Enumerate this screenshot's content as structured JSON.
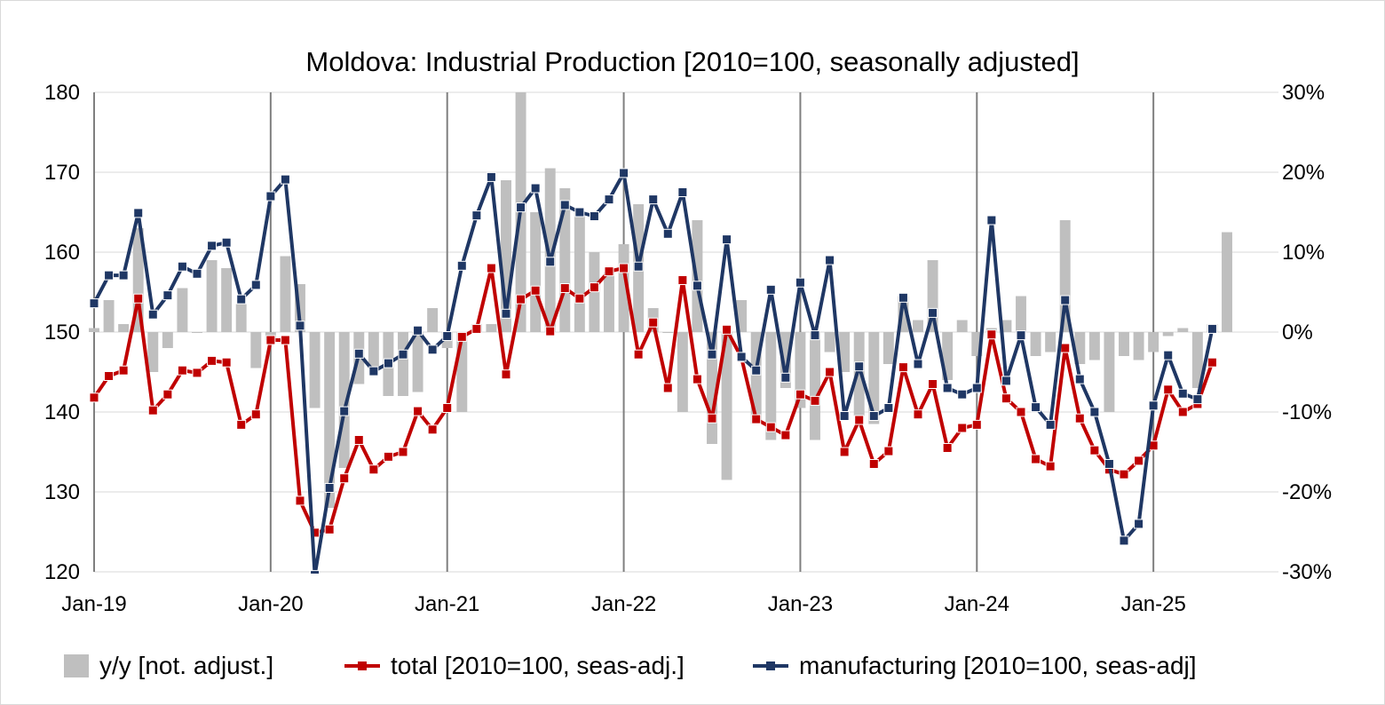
{
  "chart_data": {
    "type": "bar+line",
    "title": "Moldova: Industrial Production [2010=100, seasonally adjusted]",
    "x_start": "2019-01",
    "x_tick_labels": [
      "Jan-19",
      "Jan-20",
      "Jan-21",
      "Jan-22",
      "Jan-23",
      "Jan-24",
      "Jan-25"
    ],
    "y_left": {
      "range": [
        120,
        180
      ],
      "step": 10,
      "tick_labels": [
        "120",
        "130",
        "140",
        "150",
        "160",
        "170",
        "180"
      ]
    },
    "y_right": {
      "range": [
        -30,
        30
      ],
      "step": 10,
      "tick_labels": [
        "-30%",
        "-20%",
        "-10%",
        "0%",
        "10%",
        "20%",
        "30%"
      ]
    },
    "grid": "horizontal",
    "legend_position": "bottom",
    "series": [
      {
        "name": "y/y [not. adjust.]",
        "kind": "bar",
        "axis": "right",
        "color": "#bfbfbf",
        "values": [
          0.5,
          4,
          1,
          13,
          -5,
          -2,
          5.5,
          0,
          9,
          8,
          3.5,
          -4.5,
          -1,
          9.5,
          6,
          -9.5,
          -22,
          -17,
          -6.5,
          -4.5,
          -8,
          -8,
          -7.5,
          3,
          -2,
          -10,
          1,
          1,
          19,
          30,
          15,
          20.5,
          18,
          15,
          10,
          7.5,
          11,
          16,
          3,
          0,
          -10,
          14,
          -14,
          -18.5,
          4,
          -11.5,
          -13.5,
          -7,
          -9.5,
          -13.5,
          -2.5,
          -5,
          -10.5,
          -11.5,
          -4,
          4.5,
          1.5,
          9,
          -6,
          1.5,
          -3,
          0.5,
          1.5,
          4.5,
          -3,
          -2.5,
          14,
          -4,
          -3.5,
          -10,
          -3,
          -3.5,
          -2.5,
          -0.5,
          0.5,
          -7,
          1,
          12.5
        ]
      },
      {
        "name": "total [2010=100, seas-adj.]",
        "kind": "line",
        "axis": "left",
        "color": "#c00000",
        "values": [
          141.8,
          144.5,
          145.2,
          154.2,
          140.2,
          142.2,
          145.2,
          144.9,
          146.4,
          146.2,
          138.4,
          139.7,
          149.0,
          149.0,
          128.9,
          124.9,
          125.3,
          131.7,
          136.5,
          132.8,
          134.4,
          135.0,
          140.1,
          137.8,
          140.5,
          149.4,
          150.4,
          158.0,
          144.7,
          154.1,
          155.2,
          150.1,
          155.5,
          154.2,
          155.6,
          157.6,
          158.0,
          147.2,
          151.2,
          143.0,
          156.5,
          144.1,
          139.2,
          150.3,
          146.8,
          139.1,
          138.1,
          137.1,
          142.2,
          141.4,
          145.0,
          135.0,
          139.0,
          133.5,
          135.1,
          145.6,
          139.7,
          143.5,
          135.5,
          138.0,
          138.4,
          149.7,
          141.7,
          140.0,
          134.1,
          133.2,
          148.0,
          139.2,
          135.2,
          132.8,
          132.2,
          133.9,
          135.8,
          142.8,
          140.0,
          141.0,
          146.2
        ]
      },
      {
        "name": "manufacturing [2010=100, seas-adj]",
        "kind": "line",
        "axis": "left",
        "color": "#1f3764",
        "values": [
          153.6,
          157.1,
          157.1,
          164.9,
          152.2,
          154.6,
          158.2,
          157.3,
          160.8,
          161.2,
          154.1,
          155.9,
          167.0,
          169.1,
          150.8,
          119.6,
          130.5,
          140.1,
          147.3,
          145.1,
          146.1,
          147.2,
          150.2,
          147.8,
          149.5,
          158.3,
          164.6,
          169.4,
          152.3,
          165.6,
          168.0,
          158.8,
          165.9,
          165.0,
          164.5,
          166.6,
          169.9,
          158.2,
          166.6,
          162.3,
          167.5,
          155.8,
          147.2,
          161.6,
          146.9,
          145.2,
          155.3,
          144.3,
          156.2,
          149.6,
          159.0,
          139.5,
          145.7,
          139.5,
          140.5,
          154.3,
          146.0,
          152.4,
          143.0,
          142.2,
          143.0,
          164.0,
          143.9,
          149.6,
          140.6,
          138.4,
          154.0,
          144.1,
          140.0,
          133.5,
          123.9,
          126.0,
          140.8,
          147.1,
          142.3,
          141.6,
          150.4
        ]
      }
    ]
  }
}
